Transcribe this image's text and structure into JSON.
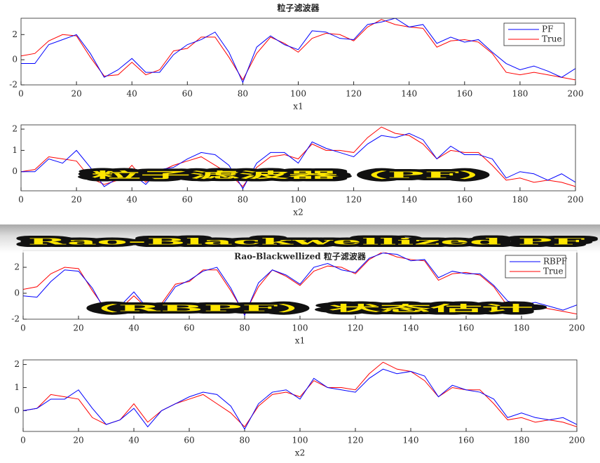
{
  "overlay": [
    "粒子滤波器（PF）",
    "Rao-Blackwellized PF",
    "（RBPF）状态估计"
  ],
  "chart_data": [
    {
      "type": "line",
      "title": "粒子滤波器",
      "xlabel": "x1",
      "legend": "northeast",
      "x": [
        0,
        5,
        10,
        15,
        20,
        25,
        30,
        35,
        40,
        45,
        50,
        55,
        60,
        65,
        70,
        75,
        80,
        85,
        90,
        95,
        100,
        105,
        110,
        115,
        120,
        125,
        130,
        135,
        140,
        145,
        150,
        155,
        160,
        165,
        170,
        175,
        180,
        185,
        190,
        195,
        200
      ],
      "xlim": [
        0,
        200
      ],
      "xticks": [
        0,
        20,
        40,
        60,
        80,
        100,
        120,
        140,
        160,
        180,
        200
      ],
      "ylim": [
        -2,
        3.3
      ],
      "yticks": [
        -2,
        0,
        2
      ],
      "series": [
        {
          "name": "PF",
          "color": "#0000ff",
          "values": [
            -0.3,
            -0.3,
            1.2,
            1.6,
            2.0,
            0.5,
            -1.4,
            -0.8,
            0.1,
            -1.0,
            -1.0,
            0.4,
            1.2,
            1.6,
            2.2,
            0.6,
            -1.8,
            1.0,
            1.9,
            1.2,
            0.8,
            2.3,
            2.2,
            1.7,
            1.6,
            2.8,
            3.0,
            3.3,
            2.6,
            2.8,
            1.3,
            1.8,
            1.4,
            1.6,
            0.6,
            -0.3,
            -0.8,
            -0.5,
            -0.9,
            -1.4,
            -0.7
          ]
        },
        {
          "name": "True",
          "color": "#ff0000",
          "values": [
            0.3,
            0.5,
            1.5,
            2.0,
            1.9,
            0.2,
            -1.3,
            -1.2,
            -0.2,
            -1.2,
            -0.8,
            0.7,
            0.9,
            1.8,
            1.8,
            0.2,
            -1.6,
            0.5,
            1.8,
            1.3,
            0.6,
            1.7,
            2.1,
            2.0,
            1.5,
            2.6,
            3.2,
            2.8,
            2.6,
            2.5,
            1.0,
            1.5,
            1.6,
            1.4,
            0.5,
            -1.0,
            -1.2,
            -1.0,
            -1.2,
            -1.4,
            -1.6
          ]
        }
      ]
    },
    {
      "type": "line",
      "xlabel": "x2",
      "x": [
        0,
        5,
        10,
        15,
        20,
        25,
        30,
        35,
        40,
        45,
        50,
        55,
        60,
        65,
        70,
        75,
        80,
        85,
        90,
        95,
        100,
        105,
        110,
        115,
        120,
        125,
        130,
        135,
        140,
        145,
        150,
        155,
        160,
        165,
        170,
        175,
        180,
        185,
        190,
        195,
        200
      ],
      "xlim": [
        0,
        200
      ],
      "xticks": [
        0,
        20,
        40,
        60,
        80,
        100,
        120,
        140,
        160,
        180,
        200
      ],
      "ylim": [
        -0.9,
        2.2
      ],
      "yticks": [
        0,
        1,
        2
      ],
      "series": [
        {
          "color": "#0000ff",
          "values": [
            0,
            0,
            0.6,
            0.4,
            1.0,
            0.2,
            -0.7,
            -0.3,
            -0.1,
            -0.6,
            0.1,
            0.2,
            0.6,
            0.9,
            0.8,
            0.3,
            -0.8,
            0.4,
            0.9,
            0.9,
            0.4,
            1.4,
            1.1,
            0.9,
            0.7,
            1.3,
            1.7,
            1.6,
            1.8,
            1.5,
            0.6,
            1.2,
            0.8,
            0.8,
            0.6,
            -0.3,
            0.0,
            -0.1,
            -0.4,
            -0.1,
            -0.5
          ]
        },
        {
          "color": "#ff0000",
          "values": [
            0,
            0.1,
            0.7,
            0.6,
            0.5,
            -0.3,
            -0.6,
            -0.4,
            0.3,
            -0.5,
            0.0,
            0.3,
            0.5,
            0.7,
            0.3,
            -0.1,
            -0.7,
            0.2,
            0.7,
            0.8,
            0.6,
            1.3,
            1.0,
            1.0,
            0.9,
            1.6,
            2.1,
            1.8,
            1.7,
            1.3,
            0.6,
            1.0,
            0.9,
            0.9,
            0.3,
            -0.4,
            -0.3,
            -0.5,
            -0.4,
            -0.5,
            -0.7
          ]
        }
      ]
    },
    {
      "type": "line",
      "title": "Rao-Blackwellized 粒子滤波器",
      "xlabel": "x1",
      "legend": "northeast",
      "x": [
        0,
        5,
        10,
        15,
        20,
        25,
        30,
        35,
        40,
        45,
        50,
        55,
        60,
        65,
        70,
        75,
        80,
        85,
        90,
        95,
        100,
        105,
        110,
        115,
        120,
        125,
        130,
        135,
        140,
        145,
        150,
        155,
        160,
        165,
        170,
        175,
        180,
        185,
        190,
        195,
        200
      ],
      "xlim": [
        0,
        200
      ],
      "xticks": [
        0,
        20,
        40,
        60,
        80,
        100,
        120,
        140,
        160,
        180,
        200
      ],
      "ylim": [
        -2,
        3.3
      ],
      "yticks": [
        -2,
        0,
        2
      ],
      "series": [
        {
          "name": "RBPF",
          "color": "#0000ff",
          "values": [
            -0.2,
            -0.3,
            0.9,
            1.8,
            1.7,
            0.4,
            -1.5,
            -1.0,
            0.1,
            -1.2,
            -1.0,
            0.5,
            1.0,
            1.7,
            2.0,
            0.4,
            -1.7,
            0.8,
            1.8,
            1.4,
            0.7,
            2.0,
            2.3,
            1.8,
            1.6,
            2.7,
            3.1,
            3.0,
            2.5,
            2.6,
            1.2,
            1.7,
            1.5,
            1.5,
            0.6,
            -0.6,
            -0.9,
            -0.7,
            -1.0,
            -1.3,
            -0.9
          ]
        },
        {
          "name": "True",
          "color": "#ff0000",
          "values": [
            0.3,
            0.5,
            1.5,
            2.0,
            1.9,
            0.2,
            -1.3,
            -1.2,
            -0.2,
            -1.2,
            -0.8,
            0.7,
            0.9,
            1.8,
            1.8,
            0.2,
            -1.6,
            0.5,
            1.8,
            1.3,
            0.6,
            1.7,
            2.1,
            2.0,
            1.5,
            2.6,
            3.2,
            2.8,
            2.6,
            2.5,
            1.0,
            1.5,
            1.6,
            1.4,
            0.5,
            -1.0,
            -1.2,
            -1.0,
            -1.2,
            -1.4,
            -1.6
          ]
        }
      ]
    },
    {
      "type": "line",
      "xlabel": "x2",
      "x": [
        0,
        5,
        10,
        15,
        20,
        25,
        30,
        35,
        40,
        45,
        50,
        55,
        60,
        65,
        70,
        75,
        80,
        85,
        90,
        95,
        100,
        105,
        110,
        115,
        120,
        125,
        130,
        135,
        140,
        145,
        150,
        155,
        160,
        165,
        170,
        175,
        180,
        185,
        190,
        195,
        200
      ],
      "xlim": [
        0,
        200
      ],
      "xticks": [
        0,
        20,
        40,
        60,
        80,
        100,
        120,
        140,
        160,
        180,
        200
      ],
      "ylim": [
        -0.9,
        2.2
      ],
      "yticks": [
        0,
        1,
        2
      ],
      "series": [
        {
          "color": "#0000ff",
          "values": [
            0,
            0.1,
            0.5,
            0.5,
            0.9,
            0.1,
            -0.6,
            -0.4,
            0.1,
            -0.7,
            0.0,
            0.3,
            0.6,
            0.8,
            0.7,
            0.2,
            -0.8,
            0.3,
            0.8,
            0.9,
            0.5,
            1.4,
            1.0,
            0.9,
            0.8,
            1.4,
            1.8,
            1.6,
            1.7,
            1.5,
            0.6,
            1.1,
            0.9,
            0.8,
            0.5,
            -0.3,
            -0.1,
            -0.3,
            -0.4,
            -0.3,
            -0.6
          ]
        },
        {
          "color": "#ff0000",
          "values": [
            0,
            0.1,
            0.7,
            0.6,
            0.5,
            -0.3,
            -0.6,
            -0.4,
            0.3,
            -0.5,
            0.0,
            0.3,
            0.5,
            0.7,
            0.3,
            -0.1,
            -0.7,
            0.2,
            0.7,
            0.8,
            0.6,
            1.3,
            1.0,
            1.0,
            0.9,
            1.6,
            2.1,
            1.8,
            1.7,
            1.3,
            0.6,
            1.0,
            0.9,
            0.9,
            0.3,
            -0.4,
            -0.3,
            -0.5,
            -0.4,
            -0.5,
            -0.7
          ]
        }
      ]
    }
  ]
}
